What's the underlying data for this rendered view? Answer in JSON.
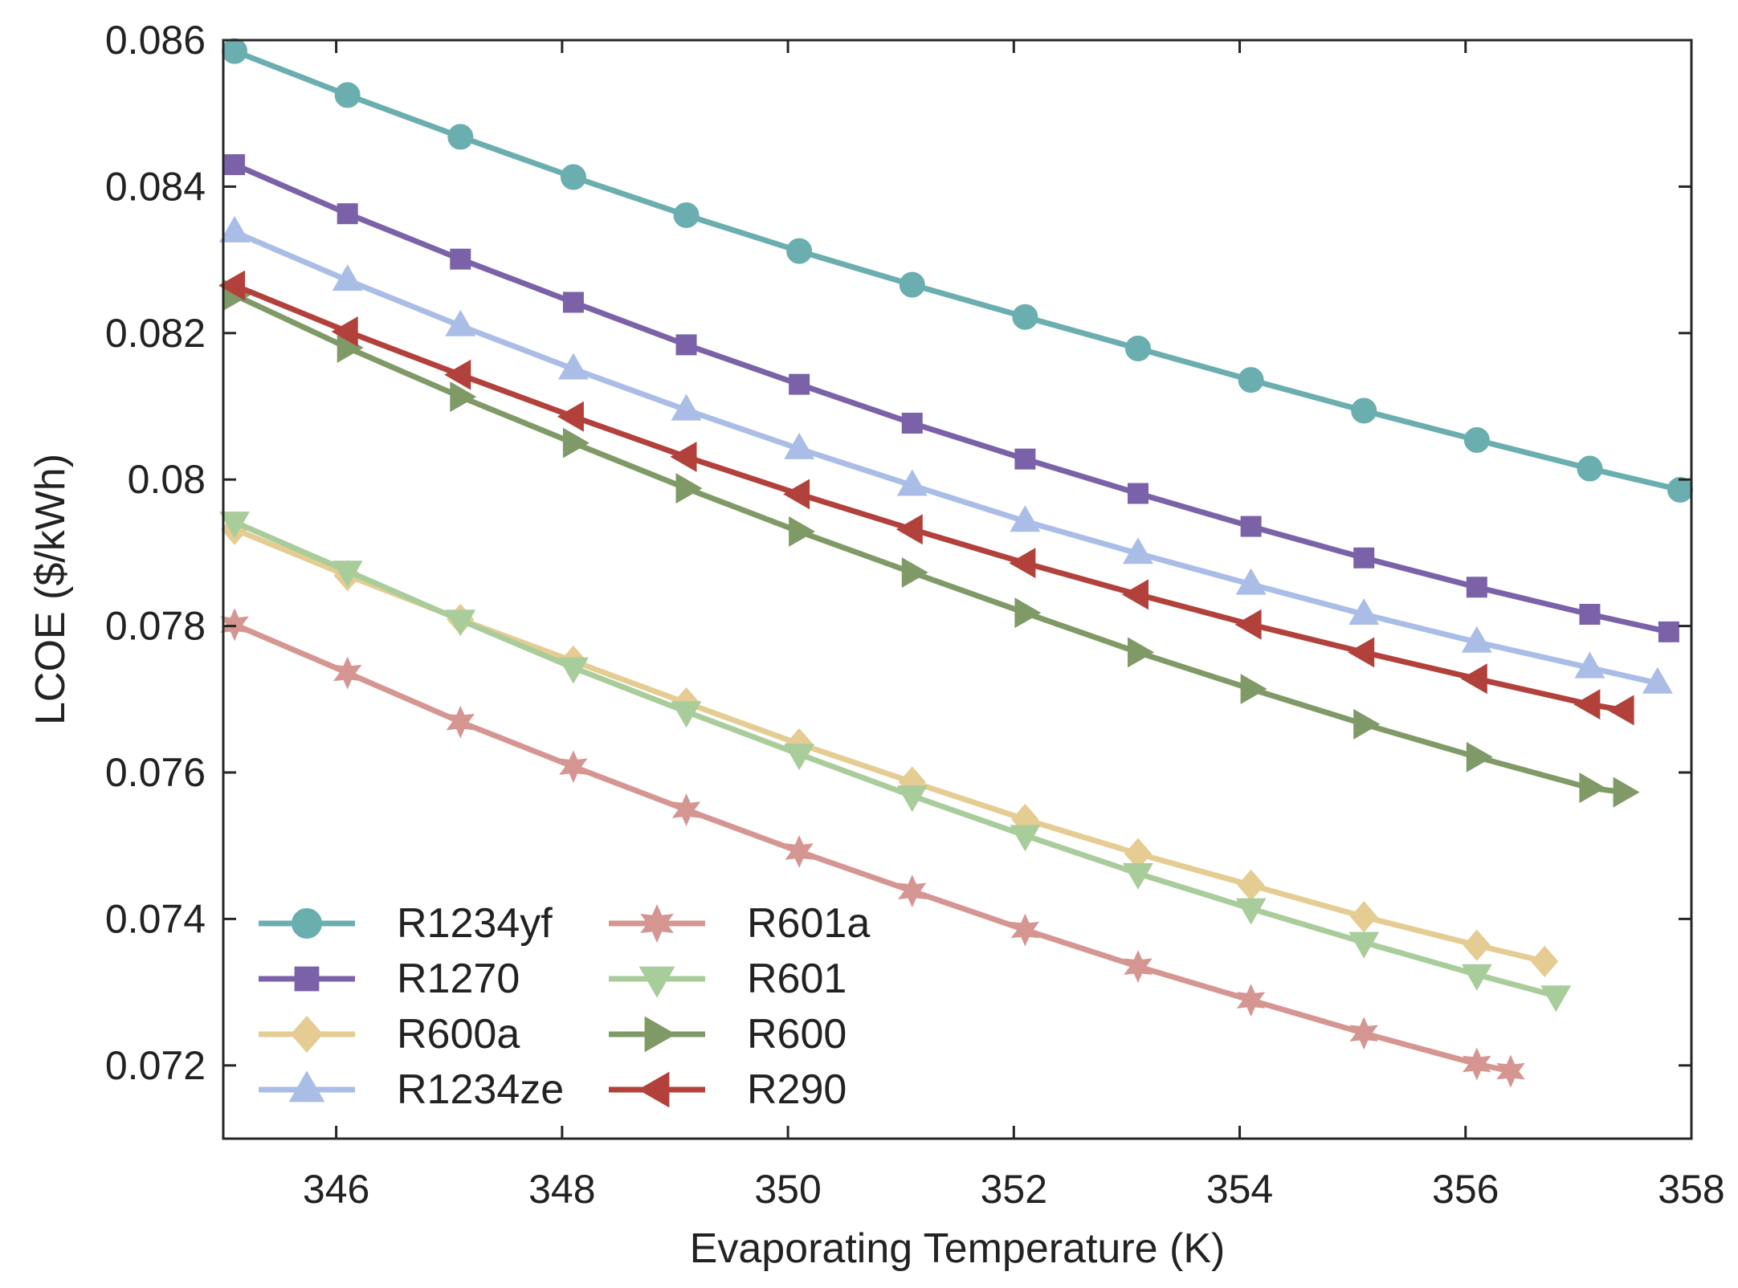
{
  "chart_data": {
    "type": "line",
    "title": "",
    "xlabel": "Evaporating Temperature (K)",
    "ylabel": "LCOE ($/kWh)",
    "xlim": [
      345,
      358
    ],
    "ylim": [
      0.071,
      0.086
    ],
    "xticks": [
      346,
      348,
      350,
      352,
      354,
      356,
      358
    ],
    "yticks": [
      0.072,
      0.074,
      0.076,
      0.078,
      0.08,
      0.082,
      0.084,
      0.086
    ],
    "xtick_labels": [
      "346",
      "348",
      "350",
      "352",
      "354",
      "356",
      "358"
    ],
    "ytick_labels": [
      "0.072",
      "0.074",
      "0.076",
      "0.078",
      "0.08",
      "0.082",
      "0.084",
      "0.086"
    ],
    "legend_position": "bottom-left",
    "series": [
      {
        "name": "R1234yf",
        "color": "#6aaeb0",
        "marker": "circle",
        "x": [
          345.1,
          346.1,
          347.1,
          348.1,
          349.1,
          350.1,
          351.1,
          352.1,
          353.1,
          354.1,
          355.1,
          356.1,
          357.1,
          357.9
        ],
        "y": [
          0.08585,
          0.08525,
          0.08468,
          0.08413,
          0.08361,
          0.08312,
          0.08266,
          0.08222,
          0.08179,
          0.08136,
          0.08094,
          0.08054,
          0.08015,
          0.07986
        ]
      },
      {
        "name": "R1270",
        "color": "#7b62a8",
        "marker": "square",
        "x": [
          345.1,
          346.1,
          347.1,
          348.1,
          349.1,
          350.1,
          351.1,
          352.1,
          353.1,
          354.1,
          355.1,
          356.1,
          357.1,
          357.8
        ],
        "y": [
          0.0843,
          0.08363,
          0.08301,
          0.08242,
          0.08184,
          0.0813,
          0.08077,
          0.08028,
          0.07981,
          0.07936,
          0.07893,
          0.07853,
          0.07816,
          0.07792
        ]
      },
      {
        "name": "R600a",
        "color": "#e4cc92",
        "marker": "diamond",
        "x": [
          345.1,
          346.1,
          347.1,
          348.1,
          349.1,
          350.1,
          351.1,
          352.1,
          353.1,
          354.1,
          355.1,
          356.1,
          356.7
        ],
        "y": [
          0.07932,
          0.07869,
          0.07809,
          0.07752,
          0.07695,
          0.07639,
          0.07587,
          0.07536,
          0.07489,
          0.07446,
          0.07403,
          0.07364,
          0.07342
        ]
      },
      {
        "name": "R1234ze",
        "color": "#a9bde6",
        "marker": "triangle-up",
        "x": [
          345.1,
          346.1,
          347.1,
          348.1,
          349.1,
          350.1,
          351.1,
          352.1,
          353.1,
          354.1,
          355.1,
          356.1,
          357.1,
          357.7
        ],
        "y": [
          0.08338,
          0.08272,
          0.0821,
          0.08151,
          0.08095,
          0.08042,
          0.07992,
          0.07943,
          0.07899,
          0.07857,
          0.07816,
          0.07778,
          0.07743,
          0.07722
        ]
      },
      {
        "name": "R601a",
        "color": "#d59692",
        "marker": "star",
        "x": [
          345.1,
          346.1,
          347.1,
          348.1,
          349.1,
          350.1,
          351.1,
          352.1,
          353.1,
          354.1,
          355.1,
          356.1,
          356.4
        ],
        "y": [
          0.07802,
          0.07736,
          0.07669,
          0.07608,
          0.07549,
          0.07492,
          0.07438,
          0.07385,
          0.07335,
          0.07289,
          0.07244,
          0.07202,
          0.07192
        ]
      },
      {
        "name": "R601",
        "color": "#a9cc9b",
        "marker": "triangle-down",
        "x": [
          345.1,
          346.1,
          347.1,
          348.1,
          349.1,
          350.1,
          351.1,
          352.1,
          353.1,
          354.1,
          355.1,
          356.1,
          356.8
        ],
        "y": [
          0.07942,
          0.07875,
          0.07808,
          0.07743,
          0.07683,
          0.07625,
          0.07568,
          0.07514,
          0.07462,
          0.07414,
          0.07368,
          0.07324,
          0.07295
        ]
      },
      {
        "name": "R600",
        "color": "#7f9a66",
        "marker": "triangle-right",
        "x": [
          345.1,
          346.1,
          347.1,
          348.1,
          349.1,
          350.1,
          351.1,
          352.1,
          353.1,
          354.1,
          355.1,
          356.1,
          357.1,
          357.4
        ],
        "y": [
          0.08252,
          0.0818,
          0.08113,
          0.0805,
          0.07988,
          0.07929,
          0.07873,
          0.07818,
          0.07764,
          0.07714,
          0.07666,
          0.07621,
          0.07579,
          0.07573
        ]
      },
      {
        "name": "R290",
        "color": "#b2413b",
        "marker": "triangle-left",
        "x": [
          345.1,
          346.1,
          347.1,
          348.1,
          349.1,
          350.1,
          351.1,
          352.1,
          353.1,
          354.1,
          355.1,
          356.1,
          357.1,
          357.4
        ],
        "y": [
          0.08265,
          0.08202,
          0.08143,
          0.08086,
          0.08031,
          0.0798,
          0.07932,
          0.07886,
          0.07843,
          0.07802,
          0.07764,
          0.07728,
          0.07693,
          0.07685
        ]
      }
    ]
  }
}
